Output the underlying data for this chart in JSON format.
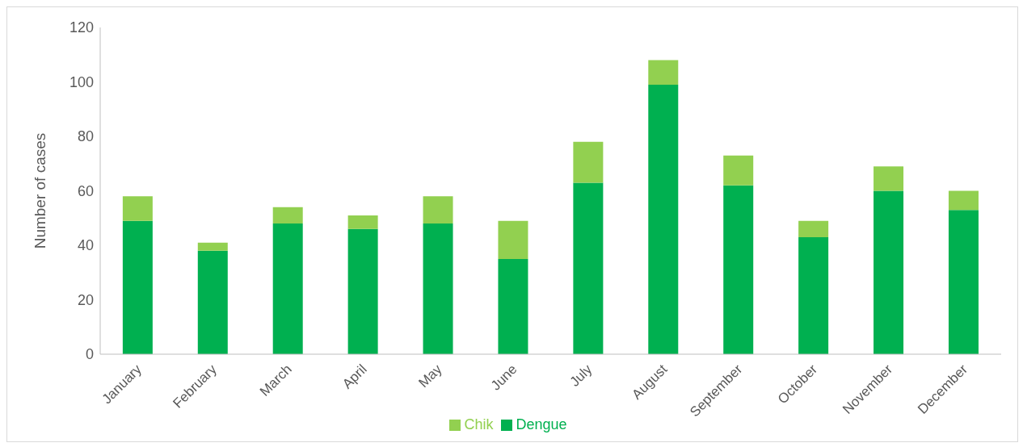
{
  "chart_data": {
    "type": "bar",
    "ylabel": "Number of cases",
    "categories": [
      "January",
      "February",
      "March",
      "April",
      "May",
      "June",
      "July",
      "August",
      "September",
      "October",
      "November",
      "December"
    ],
    "series": [
      {
        "name": "Dengue",
        "color": "#00b050",
        "values": [
          49,
          38,
          48,
          46,
          48,
          35,
          63,
          99,
          62,
          43,
          60,
          53
        ]
      },
      {
        "name": "Chik",
        "color": "#92d050",
        "values": [
          9,
          3,
          6,
          5,
          10,
          14,
          15,
          9,
          11,
          6,
          9,
          7
        ]
      }
    ],
    "stacked": true,
    "ylim": [
      0,
      120
    ],
    "yticks": [
      0,
      20,
      40,
      60,
      80,
      100,
      120
    ],
    "grid": false,
    "legend": "bottom"
  }
}
